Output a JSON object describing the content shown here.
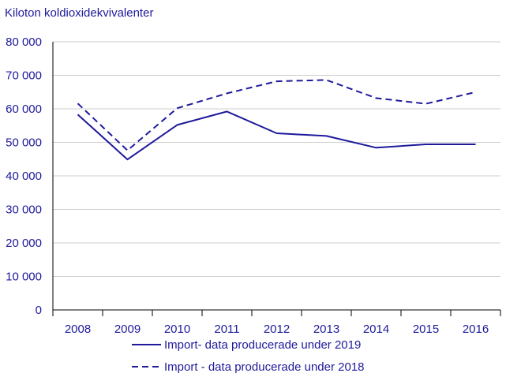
{
  "chart_data": {
    "type": "line",
    "unit_label": "Kiloton koldioxidekvivalenter",
    "title": "",
    "xlabel": "",
    "ylabel": "",
    "categories": [
      "2008",
      "2009",
      "2010",
      "2011",
      "2012",
      "2013",
      "2014",
      "2015",
      "2016"
    ],
    "ylim": [
      0,
      80000
    ],
    "yticks": [
      0,
      10000,
      20000,
      30000,
      40000,
      50000,
      60000,
      70000,
      80000
    ],
    "ytick_labels": [
      "0",
      "10 000",
      "20 000",
      "30 000",
      "40 000",
      "50 000",
      "60 000",
      "70 000",
      "80 000"
    ],
    "grid": "horizontal",
    "legend_position": "bottom",
    "series": [
      {
        "name": "Import- data producerade under 2019",
        "style": "solid",
        "color": "#1e1a9a",
        "values": [
          58300,
          44900,
          55200,
          59200,
          52700,
          51900,
          48400,
          49400,
          49400
        ]
      },
      {
        "name": "Import - data producerade under 2018",
        "style": "dashed",
        "color": "#1e1a9a",
        "values": [
          61600,
          47600,
          60200,
          64600,
          68200,
          68600,
          63200,
          61500,
          65000
        ]
      }
    ]
  }
}
